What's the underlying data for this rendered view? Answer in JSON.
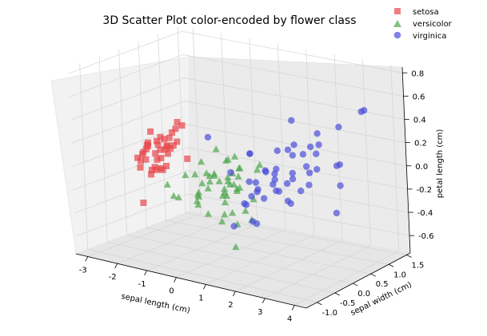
{
  "chart_data": {
    "type": "scatter",
    "projection": "3d",
    "title": "3D Scatter Plot color-encoded by flower class",
    "xlabel": "sepal length (cm)",
    "ylabel": "sepal width (cm)",
    "zlabel": "petal length (cm)",
    "xlim": [
      -3.4,
      4.4
    ],
    "ylim": [
      -1.3,
      1.6
    ],
    "zlim": [
      -0.75,
      0.85
    ],
    "xticks": [
      "-3",
      "-2",
      "-1",
      "0",
      "1",
      "2",
      "3",
      "4"
    ],
    "yticks": [
      "-1.0",
      "-0.5",
      "0.0",
      "0.5",
      "1.0",
      "1.5"
    ],
    "zticks": [
      "-0.6",
      "-0.4",
      "-0.2",
      "0.0",
      "0.2",
      "0.4",
      "0.6",
      "0.8"
    ],
    "grid": true,
    "legend_position": "top-right",
    "series": [
      {
        "name": "setosa",
        "marker": "square",
        "color": "#e8464b",
        "points": [
          [
            -2.7,
            0.3,
            -0.05
          ],
          [
            -2.7,
            0.55,
            -0.05
          ],
          [
            -2.3,
            0.4,
            0.0
          ],
          [
            -2.5,
            -0.2,
            -0.4
          ],
          [
            -2.2,
            0.5,
            0.05
          ],
          [
            -2.9,
            0.2,
            -0.1
          ],
          [
            -2.6,
            0.05,
            0.05
          ],
          [
            -2.4,
            0.35,
            -0.15
          ],
          [
            -2.6,
            0.2,
            -0.15
          ],
          [
            -2.7,
            0.1,
            0.05
          ],
          [
            -2.0,
            0.6,
            -0.1
          ],
          [
            -2.5,
            0.3,
            0.1
          ],
          [
            -2.6,
            -0.1,
            0.0
          ],
          [
            -2.8,
            0.45,
            0.0
          ],
          [
            -2.4,
            0.1,
            -0.15
          ],
          [
            -2.3,
            0.55,
            0.15
          ],
          [
            -2.5,
            -0.3,
            0.0
          ],
          [
            -2.0,
            0.5,
            0.2
          ],
          [
            -2.7,
            0.0,
            0.0
          ],
          [
            -2.5,
            0.6,
            0.1
          ],
          [
            -2.3,
            0.05,
            -0.05
          ],
          [
            -2.6,
            0.4,
            -0.2
          ],
          [
            -2.9,
            0.05,
            -0.15
          ],
          [
            -2.3,
            0.15,
            -0.05
          ],
          [
            -2.6,
            0.1,
            -0.2
          ],
          [
            -2.3,
            0.25,
            0.1
          ],
          [
            -2.7,
            0.35,
            0.05
          ],
          [
            -2.8,
            0.2,
            0.05
          ],
          [
            -2.4,
            0.55,
            0.0
          ],
          [
            -2.6,
            -0.15,
            -0.05
          ],
          [
            -2.7,
            0.2,
            0.15
          ],
          [
            -2.2,
            0.25,
            0.05
          ],
          [
            -2.4,
            0.4,
            -0.05
          ],
          [
            -2.5,
            0.05,
            -0.15
          ],
          [
            -2.8,
            0.5,
            -0.05
          ],
          [
            -2.3,
            0.6,
            0.2
          ],
          [
            -2.6,
            0.6,
            0.05
          ],
          [
            -2.4,
            0.2,
            -0.15
          ],
          [
            -2.8,
            0.15,
            0.0
          ],
          [
            -2.5,
            0.45,
            0.0
          ]
        ]
      },
      {
        "name": "versicolor",
        "marker": "triangle",
        "color": "#4da64d",
        "points": [
          [
            1.3,
            -0.7,
            -0.5
          ],
          [
            0.9,
            -0.3,
            -0.1
          ],
          [
            1.5,
            -0.4,
            -0.3
          ],
          [
            0.2,
            -0.8,
            -0.1
          ],
          [
            1.0,
            -0.55,
            0.0
          ],
          [
            0.6,
            -0.4,
            -0.2
          ],
          [
            0.2,
            -0.55,
            0.05
          ],
          [
            -0.4,
            -0.85,
            -0.15
          ],
          [
            0.8,
            -0.25,
            -0.4
          ],
          [
            0.0,
            -0.7,
            0.05
          ],
          [
            -0.8,
            -0.35,
            -0.05
          ],
          [
            0.5,
            -0.1,
            0.0
          ],
          [
            0.3,
            -0.2,
            -0.35
          ],
          [
            0.9,
            -0.5,
            0.2
          ],
          [
            -0.3,
            -0.4,
            -0.2
          ],
          [
            0.7,
            -0.05,
            0.05
          ],
          [
            0.6,
            -0.35,
            -0.15
          ],
          [
            0.2,
            -0.15,
            -0.2
          ],
          [
            1.1,
            -0.45,
            -0.05
          ],
          [
            0.1,
            -0.6,
            0.15
          ],
          [
            1.0,
            0.25,
            0.05
          ],
          [
            0.4,
            -0.25,
            -0.15
          ],
          [
            1.3,
            -0.75,
            -0.2
          ],
          [
            0.9,
            -0.1,
            -0.3
          ],
          [
            0.7,
            -0.65,
            0.3
          ],
          [
            0.8,
            -0.3,
            -0.05
          ],
          [
            1.2,
            -0.55,
            0.25
          ],
          [
            1.5,
            -0.2,
            0.1
          ],
          [
            0.8,
            -0.45,
            0.0
          ],
          [
            -0.3,
            -0.3,
            -0.1
          ],
          [
            -0.1,
            -0.6,
            -0.2
          ],
          [
            -0.2,
            -0.5,
            -0.25
          ],
          [
            0.1,
            -0.45,
            -0.1
          ],
          [
            1.1,
            -0.4,
            0.05
          ],
          [
            0.6,
            -0.5,
            -0.35
          ],
          [
            0.8,
            0.2,
            -0.25
          ],
          [
            1.0,
            -0.3,
            0.1
          ],
          [
            0.7,
            -0.85,
            0.05
          ],
          [
            0.2,
            -0.1,
            -0.15
          ],
          [
            0.1,
            -0.7,
            -0.1
          ],
          [
            0.4,
            -0.5,
            0.05
          ],
          [
            0.8,
            -0.15,
            -0.1
          ],
          [
            0.1,
            -0.4,
            0.0
          ],
          [
            -0.7,
            -0.9,
            -0.05
          ],
          [
            0.2,
            -0.55,
            -0.3
          ],
          [
            0.3,
            -0.1,
            0.1
          ],
          [
            0.3,
            -0.3,
            -0.05
          ],
          [
            0.6,
            -0.3,
            0.0
          ],
          [
            -0.9,
            -0.6,
            -0.2
          ],
          [
            0.2,
            -0.35,
            0.0
          ]
        ]
      },
      {
        "name": "virginica",
        "marker": "circle",
        "color": "#4b4fd9",
        "points": [
          [
            2.5,
            0.0,
            0.55
          ],
          [
            1.4,
            -0.3,
            0.25
          ],
          [
            2.6,
            0.35,
            0.05
          ],
          [
            2.0,
            0.2,
            -0.2
          ],
          [
            2.4,
            -0.05,
            0.3
          ],
          [
            3.4,
            0.55,
            -0.05
          ],
          [
            0.5,
            -0.7,
            0.4
          ],
          [
            2.9,
            0.4,
            0.3
          ],
          [
            2.3,
            -0.6,
            0.2
          ],
          [
            2.9,
            0.8,
            -0.35
          ],
          [
            1.7,
            0.65,
            0.2
          ],
          [
            1.8,
            -0.2,
            0.1
          ],
          [
            2.2,
            0.2,
            0.0
          ],
          [
            1.4,
            -0.8,
            -0.3
          ],
          [
            1.6,
            -0.5,
            0.05
          ],
          [
            1.9,
            0.45,
            0.15
          ],
          [
            1.9,
            0.05,
            -0.1
          ],
          [
            3.5,
            1.2,
            0.5
          ],
          [
            3.8,
            0.25,
            0.2
          ],
          [
            1.3,
            -0.75,
            0.15
          ],
          [
            2.4,
            0.35,
            0.2
          ],
          [
            1.2,
            -0.3,
            -0.2
          ],
          [
            3.5,
            0.4,
            0.15
          ],
          [
            1.4,
            -0.15,
            -0.1
          ],
          [
            2.3,
            0.55,
            -0.1
          ],
          [
            2.6,
            0.6,
            0.35
          ],
          [
            1.3,
            -0.05,
            -0.1
          ],
          [
            1.3,
            0.1,
            -0.2
          ],
          [
            2.1,
            -0.2,
            0.1
          ],
          [
            2.4,
            0.7,
            0.15
          ],
          [
            2.8,
            0.25,
            0.3
          ],
          [
            3.2,
            1.35,
            0.45
          ],
          [
            2.1,
            -0.2,
            0.05
          ],
          [
            1.5,
            -0.25,
            0.0
          ],
          [
            1.8,
            -0.5,
            -0.3
          ],
          [
            3.1,
            0.8,
            0.4
          ],
          [
            1.9,
            0.05,
            0.25
          ],
          [
            1.7,
            0.05,
            -0.05
          ],
          [
            1.2,
            -0.15,
            -0.15
          ],
          [
            2.2,
            0.2,
            0.05
          ],
          [
            2.4,
            0.25,
            -0.1
          ],
          [
            1.9,
            0.35,
            -0.25
          ],
          [
            1.4,
            -0.3,
            0.25
          ],
          [
            2.6,
            0.55,
            0.05
          ],
          [
            2.5,
            0.35,
            0.1
          ],
          [
            2.0,
            0.2,
            -0.05
          ],
          [
            1.6,
            -0.45,
            -0.3
          ],
          [
            1.8,
            0.05,
            -0.1
          ],
          [
            1.9,
            0.0,
            0.1
          ],
          [
            1.4,
            -0.5,
            -0.15
          ]
        ]
      }
    ]
  }
}
